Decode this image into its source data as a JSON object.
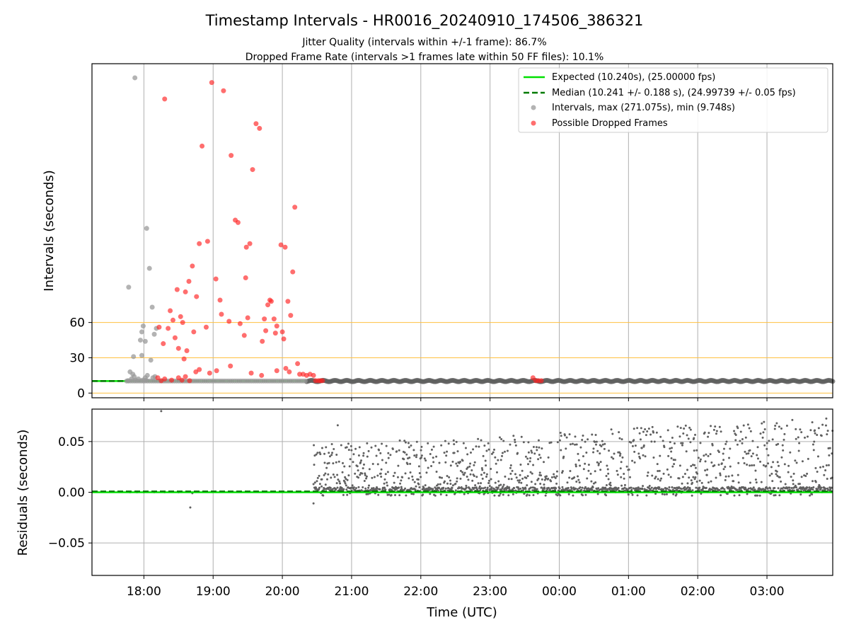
{
  "chart_data": {
    "type": "scatter",
    "title": "Timestamp Intervals - HR0016_20240910_174506_386321",
    "subtitle_1": "Jitter Quality (intervals within +/-1 frame): 86.7%",
    "subtitle_2": "Dropped Frame Rate (intervals >1 frames late within 50 FF files): 10.1%",
    "xlabel": "Time (UTC)",
    "x_ticks": [
      "18:00",
      "19:00",
      "20:00",
      "21:00",
      "22:00",
      "23:00",
      "00:00",
      "01:00",
      "02:00",
      "03:00"
    ],
    "x_range_hours": [
      17.25,
      27.95
    ],
    "grid": true,
    "colors": {
      "expected": "#00e000",
      "median": "#007a00",
      "intervals": "#9a9a9a",
      "dropped": "#ff2020",
      "guide": "#ffc040",
      "residual": "#606060"
    },
    "top_panel": {
      "ylabel": "Intervals (seconds)",
      "y_ticks": [
        0,
        30,
        60
      ],
      "ylim": [
        -4,
        280
      ],
      "guide_lines": [
        0,
        30,
        60
      ],
      "expected_interval": 10.24,
      "median_interval": 10.241,
      "legend_position": "upper right",
      "legend": [
        {
          "kind": "line",
          "label": "Expected (10.240s), (25.00000 fps)"
        },
        {
          "kind": "dashed",
          "label": "Median (10.241 +/- 0.188 s), (24.99739 +/- 0.05 fps)"
        },
        {
          "kind": "gray-dot",
          "label": "Intervals, max (271.075s), min (9.748s)"
        },
        {
          "kind": "red-dot",
          "label": "Possible Dropped Frames"
        }
      ],
      "gray_points": [
        [
          17.77,
          10.5
        ],
        [
          17.8,
          18
        ],
        [
          17.82,
          12
        ],
        [
          17.84,
          16
        ],
        [
          17.86,
          14
        ],
        [
          17.88,
          11
        ],
        [
          17.85,
          31
        ],
        [
          17.78,
          90
        ],
        [
          17.87,
          268
        ],
        [
          17.95,
          45
        ],
        [
          17.97,
          52
        ],
        [
          17.99,
          57
        ],
        [
          18.02,
          44
        ],
        [
          18.04,
          140
        ],
        [
          18.08,
          106
        ],
        [
          18.12,
          73
        ],
        [
          18.15,
          50
        ],
        [
          18.18,
          55
        ],
        [
          18.1,
          28
        ],
        [
          17.97,
          32
        ],
        [
          18.02,
          13
        ],
        [
          18.05,
          15
        ],
        [
          18.13,
          13
        ],
        [
          18.16,
          14
        ],
        [
          17.92,
          12
        ],
        [
          17.98,
          11
        ],
        [
          18.03,
          11
        ]
      ],
      "red_points": [
        [
          18.22,
          56
        ],
        [
          18.28,
          42
        ],
        [
          18.3,
          250
        ],
        [
          18.35,
          55
        ],
        [
          18.38,
          70
        ],
        [
          18.42,
          62
        ],
        [
          18.45,
          47
        ],
        [
          18.48,
          88
        ],
        [
          18.5,
          38
        ],
        [
          18.53,
          65
        ],
        [
          18.56,
          60
        ],
        [
          18.58,
          29
        ],
        [
          18.6,
          86
        ],
        [
          18.62,
          36
        ],
        [
          18.65,
          95
        ],
        [
          18.7,
          108
        ],
        [
          18.72,
          52
        ],
        [
          18.76,
          82
        ],
        [
          18.8,
          127
        ],
        [
          18.84,
          210
        ],
        [
          18.9,
          56
        ],
        [
          18.92,
          129
        ],
        [
          18.98,
          264
        ],
        [
          19.04,
          97
        ],
        [
          19.1,
          79
        ],
        [
          19.12,
          67
        ],
        [
          19.15,
          257
        ],
        [
          19.23,
          61
        ],
        [
          19.26,
          202
        ],
        [
          19.32,
          147
        ],
        [
          19.36,
          145
        ],
        [
          19.39,
          59
        ],
        [
          19.45,
          49
        ],
        [
          19.47,
          98
        ],
        [
          19.48,
          124
        ],
        [
          19.5,
          64
        ],
        [
          19.53,
          127
        ],
        [
          19.57,
          190
        ],
        [
          19.62,
          229
        ],
        [
          19.67,
          225
        ],
        [
          19.71,
          44
        ],
        [
          19.74,
          63
        ],
        [
          19.76,
          53
        ],
        [
          19.79,
          75
        ],
        [
          19.82,
          79
        ],
        [
          19.84,
          78
        ],
        [
          19.88,
          63
        ],
        [
          19.9,
          51
        ],
        [
          19.92,
          57
        ],
        [
          19.98,
          126
        ],
        [
          20.0,
          52
        ],
        [
          20.02,
          46
        ],
        [
          20.04,
          124
        ],
        [
          20.08,
          78
        ],
        [
          20.12,
          66
        ],
        [
          20.15,
          103
        ],
        [
          20.18,
          158
        ],
        [
          18.2,
          13
        ],
        [
          18.25,
          10.5
        ],
        [
          18.3,
          12
        ],
        [
          18.4,
          11
        ],
        [
          18.5,
          13
        ],
        [
          18.55,
          11
        ],
        [
          18.6,
          14
        ],
        [
          18.66,
          10.5
        ],
        [
          18.75,
          18
        ],
        [
          18.8,
          20
        ],
        [
          18.95,
          17
        ],
        [
          19.05,
          19
        ],
        [
          19.25,
          23
        ],
        [
          19.55,
          17
        ],
        [
          19.7,
          15
        ],
        [
          19.92,
          19
        ],
        [
          20.05,
          21
        ],
        [
          20.1,
          18
        ],
        [
          20.22,
          25
        ],
        [
          20.25,
          16
        ],
        [
          20.3,
          16
        ],
        [
          20.35,
          15
        ],
        [
          20.4,
          16
        ],
        [
          20.45,
          15
        ],
        [
          20.48,
          10.5
        ],
        [
          20.52,
          10.5
        ],
        [
          20.55,
          10.5
        ],
        [
          20.58,
          10.5
        ],
        [
          23.62,
          13
        ],
        [
          23.66,
          10.5
        ],
        [
          23.7,
          10.5
        ],
        [
          23.74,
          10.5
        ]
      ]
    },
    "bottom_panel": {
      "ylabel": "Residuals (seconds)",
      "y_ticks": [
        "0.05",
        "0.00",
        "−0.05"
      ],
      "y_tick_values": [
        0.05,
        0.0,
        -0.05
      ],
      "ylim": [
        -0.082,
        0.082
      ],
      "expected_line": 0.0,
      "median_line": 0.001,
      "residual_range": [
        -0.01,
        0.08
      ]
    }
  }
}
